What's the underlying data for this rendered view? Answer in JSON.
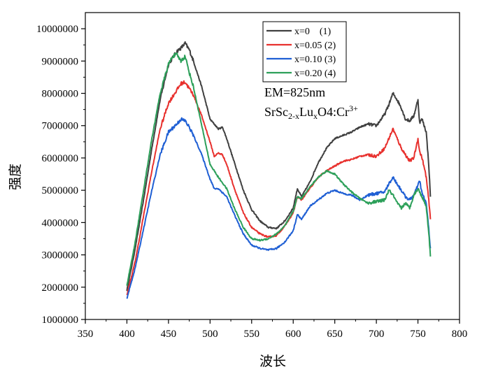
{
  "chart_data": {
    "type": "line",
    "xlabel": "波长",
    "ylabel": "强度",
    "xlim": [
      350,
      800
    ],
    "ylim": [
      1000000,
      10500000
    ],
    "xticks": [
      350,
      400,
      450,
      500,
      550,
      600,
      650,
      700,
      750,
      800
    ],
    "yticks": [
      1000000,
      2000000,
      3000000,
      4000000,
      5000000,
      6000000,
      7000000,
      8000000,
      9000000,
      10000000
    ],
    "legend_position": "top-right",
    "annotations": {
      "em": "EM=825nm",
      "formula_parts": [
        "SrSc",
        "2-x",
        "Lu",
        "x",
        "O4:Cr",
        "3+"
      ]
    },
    "series": [
      {
        "name": "x=0    (1)",
        "color": "#404040",
        "x": [
          400,
          410,
          420,
          430,
          440,
          450,
          460,
          465,
          470,
          475,
          480,
          490,
          500,
          510,
          515,
          520,
          530,
          540,
          550,
          560,
          570,
          580,
          590,
          600,
          605,
          610,
          620,
          630,
          640,
          650,
          660,
          670,
          680,
          690,
          700,
          710,
          715,
          720,
          725,
          730,
          735,
          740,
          745,
          750,
          752,
          755,
          760,
          763,
          765
        ],
        "y": [
          1900000,
          3200000,
          4700000,
          6300000,
          7800000,
          8900000,
          9300000,
          9400000,
          9550000,
          9350000,
          9000000,
          8200000,
          7200000,
          6900000,
          6950000,
          6600000,
          5800000,
          5000000,
          4400000,
          4050000,
          3850000,
          3820000,
          4050000,
          4450000,
          5050000,
          4800000,
          5250000,
          5850000,
          6300000,
          6600000,
          6700000,
          6800000,
          6950000,
          7050000,
          7000000,
          7350000,
          7650000,
          8000000,
          7800000,
          7550000,
          7200000,
          7150000,
          7300000,
          7800000,
          7100000,
          7200000,
          6800000,
          5800000,
          4800000
        ]
      },
      {
        "name": "x=0.05 (2)",
        "color": "#e8312e",
        "x": [
          400,
          410,
          420,
          430,
          440,
          450,
          460,
          465,
          470,
          475,
          480,
          490,
          500,
          505,
          510,
          515,
          520,
          530,
          540,
          550,
          560,
          570,
          580,
          590,
          600,
          605,
          610,
          620,
          630,
          640,
          650,
          660,
          670,
          680,
          690,
          700,
          710,
          715,
          720,
          725,
          730,
          735,
          740,
          745,
          750,
          752,
          755,
          760,
          763,
          765
        ],
        "y": [
          1750000,
          2800000,
          4200000,
          5600000,
          6900000,
          7700000,
          8100000,
          8300000,
          8350000,
          8150000,
          7950000,
          7300000,
          6500000,
          6050000,
          6150000,
          6100000,
          5800000,
          5000000,
          4300000,
          3850000,
          3650000,
          3550000,
          3600000,
          3900000,
          4300000,
          4800000,
          4700000,
          5050000,
          5400000,
          5600000,
          5750000,
          5900000,
          5950000,
          6050000,
          6100000,
          6050000,
          6300000,
          6600000,
          6900000,
          6600000,
          6300000,
          6100000,
          5900000,
          6000000,
          6600000,
          6200000,
          6000000,
          5400000,
          4700000,
          4100000
        ]
      },
      {
        "name": "x=0.10 (3)",
        "color": "#1f5fd4",
        "x": [
          400,
          410,
          420,
          430,
          440,
          450,
          460,
          465,
          470,
          475,
          480,
          490,
          500,
          505,
          510,
          520,
          530,
          540,
          550,
          560,
          570,
          580,
          590,
          600,
          605,
          610,
          620,
          630,
          640,
          650,
          660,
          670,
          680,
          690,
          700,
          710,
          715,
          720,
          725,
          730,
          735,
          740,
          745,
          750,
          752,
          755,
          760,
          763,
          765
        ],
        "y": [
          1650000,
          2600000,
          3800000,
          5000000,
          6100000,
          6800000,
          7050000,
          7200000,
          7150000,
          6950000,
          6700000,
          6100000,
          5350000,
          5050000,
          5050000,
          4800000,
          4200000,
          3650000,
          3300000,
          3200000,
          3150000,
          3200000,
          3400000,
          3750000,
          4250000,
          4100000,
          4500000,
          4700000,
          4900000,
          5000000,
          4900000,
          4850000,
          4700000,
          4850000,
          4900000,
          4950000,
          5200000,
          5400000,
          5200000,
          5000000,
          4800000,
          4700000,
          4850000,
          5150000,
          5300000,
          4900000,
          4600000,
          3800000,
          3200000
        ]
      },
      {
        "name": "x=0.20 (4)",
        "color": "#2da05a",
        "x": [
          400,
          410,
          420,
          430,
          440,
          450,
          455,
          460,
          465,
          470,
          475,
          480,
          490,
          500,
          510,
          520,
          530,
          540,
          550,
          560,
          570,
          580,
          590,
          600,
          605,
          610,
          620,
          630,
          640,
          650,
          660,
          670,
          680,
          690,
          700,
          710,
          715,
          720,
          725,
          730,
          735,
          740,
          745,
          750,
          755,
          760,
          763,
          765
        ],
        "y": [
          2050000,
          3400000,
          5000000,
          6600000,
          8000000,
          8900000,
          9150000,
          9200000,
          9000000,
          9150000,
          8650000,
          8200000,
          7000000,
          5800000,
          5400000,
          5050000,
          4400000,
          3850000,
          3500000,
          3450000,
          3500000,
          3650000,
          3900000,
          4350000,
          4800000,
          4750000,
          5100000,
          5400000,
          5600000,
          5500000,
          5200000,
          4950000,
          4750000,
          4600000,
          4650000,
          4700000,
          5000000,
          4850000,
          4600000,
          4450000,
          4600000,
          4450000,
          4850000,
          5050000,
          4800000,
          4500000,
          3700000,
          2950000
        ]
      }
    ]
  }
}
